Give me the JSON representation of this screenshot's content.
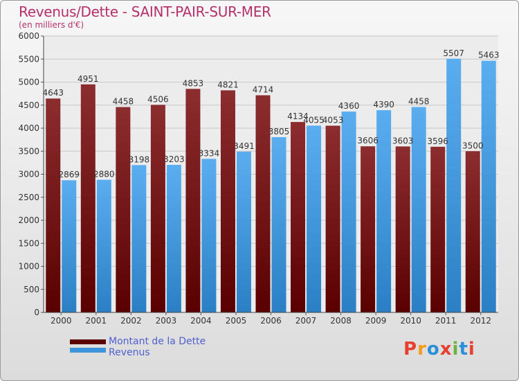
{
  "header": {
    "title": "Revenus/Dette - SAINT-PAIR-SUR-MER",
    "subtitle": "(en milliers d'€)"
  },
  "legend": {
    "items": [
      {
        "label": "Montant de la Dette",
        "color": "#7a0f14"
      },
      {
        "label": "Revenus",
        "color": "#3d95db"
      }
    ]
  },
  "logo": {
    "text": "Proxiti",
    "colors": [
      "#e8402f",
      "#f39c1a",
      "#2b8fd8",
      "#e8402f",
      "#6cb33f",
      "#2b8fd8",
      "#e8402f"
    ]
  },
  "chart_data": {
    "type": "bar",
    "title": "Revenus/Dette - SAINT-PAIR-SUR-MER",
    "subtitle": "(en milliers d'€)",
    "categories": [
      "2000",
      "2001",
      "2002",
      "2003",
      "2004",
      "2005",
      "2006",
      "2007",
      "2008",
      "2009",
      "2010",
      "2011",
      "2012"
    ],
    "series": [
      {
        "name": "Montant de la Dette",
        "color": "#7a0f14",
        "values": [
          4643,
          4951,
          4458,
          4506,
          4853,
          4821,
          4714,
          4134,
          4053,
          3606,
          3603,
          3596,
          3500
        ]
      },
      {
        "name": "Revenus",
        "color": "#3d95db",
        "values": [
          2869,
          2880,
          3198,
          3203,
          3334,
          3491,
          3805,
          4055,
          4360,
          4390,
          4458,
          5507,
          5463
        ]
      }
    ],
    "ylim": [
      0,
      6000
    ],
    "yticks": [
      0,
      500,
      1000,
      1500,
      2000,
      2500,
      3000,
      3500,
      4000,
      4500,
      5000,
      5500,
      6000
    ],
    "grid": true,
    "legend_position": "bottom-left"
  }
}
